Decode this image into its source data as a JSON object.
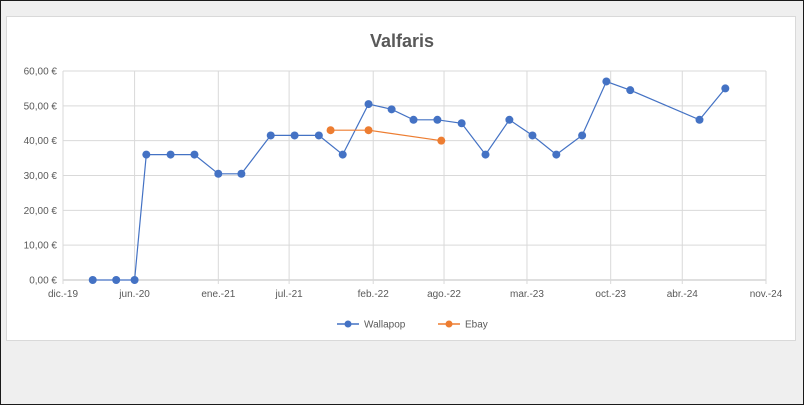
{
  "chart_data": {
    "type": "line",
    "title": "Valfaris",
    "xlabel": "",
    "ylabel": "",
    "x_tick_labels": [
      "dic.-19",
      "jun.-20",
      "ene.-21",
      "jul.-21",
      "feb.-22",
      "ago.-22",
      "mar.-23",
      "oct.-23",
      "abr.-24",
      "nov.-24"
    ],
    "x_tick_dates": [
      "2019-12-01",
      "2020-06-01",
      "2021-01-01",
      "2021-07-01",
      "2022-02-01",
      "2022-08-01",
      "2023-03-01",
      "2023-10-01",
      "2024-04-01",
      "2024-11-01"
    ],
    "y_tick_labels": [
      "0,00 €",
      "10,00 €",
      "20,00 €",
      "30,00 €",
      "40,00 €",
      "50,00 €",
      "60,00 €"
    ],
    "ylim": [
      0,
      60
    ],
    "xlim": [
      "2019-12-01",
      "2024-11-01"
    ],
    "grid": true,
    "legend_position": "bottom",
    "series": [
      {
        "name": "Wallapop",
        "color": "#4472c4",
        "points": [
          {
            "x": "2020-02-15",
            "y": 0
          },
          {
            "x": "2020-04-15",
            "y": 0
          },
          {
            "x": "2020-06-01",
            "y": 0
          },
          {
            "x": "2020-07-01",
            "y": 36
          },
          {
            "x": "2020-09-01",
            "y": 36
          },
          {
            "x": "2020-11-01",
            "y": 36
          },
          {
            "x": "2021-01-01",
            "y": 30.5
          },
          {
            "x": "2021-03-01",
            "y": 30.5
          },
          {
            "x": "2021-05-15",
            "y": 41.5
          },
          {
            "x": "2021-07-15",
            "y": 41.5
          },
          {
            "x": "2021-09-15",
            "y": 41.5
          },
          {
            "x": "2021-11-15",
            "y": 36
          },
          {
            "x": "2022-01-20",
            "y": 50.5
          },
          {
            "x": "2022-03-20",
            "y": 49
          },
          {
            "x": "2022-05-15",
            "y": 46
          },
          {
            "x": "2022-07-15",
            "y": 46
          },
          {
            "x": "2022-09-15",
            "y": 45
          },
          {
            "x": "2022-11-15",
            "y": 36
          },
          {
            "x": "2023-01-15",
            "y": 46
          },
          {
            "x": "2023-03-15",
            "y": 41.5
          },
          {
            "x": "2023-05-15",
            "y": 36
          },
          {
            "x": "2023-07-20",
            "y": 41.5
          },
          {
            "x": "2023-09-20",
            "y": 57
          },
          {
            "x": "2023-11-20",
            "y": 54.5
          },
          {
            "x": "2024-05-15",
            "y": 46
          },
          {
            "x": "2024-07-20",
            "y": 55
          }
        ]
      },
      {
        "name": "Ebay",
        "color": "#ed7d31",
        "points": [
          {
            "x": "2021-10-15",
            "y": 43
          },
          {
            "x": "2022-01-20",
            "y": 43
          },
          {
            "x": "2022-07-25",
            "y": 40
          }
        ]
      }
    ]
  }
}
